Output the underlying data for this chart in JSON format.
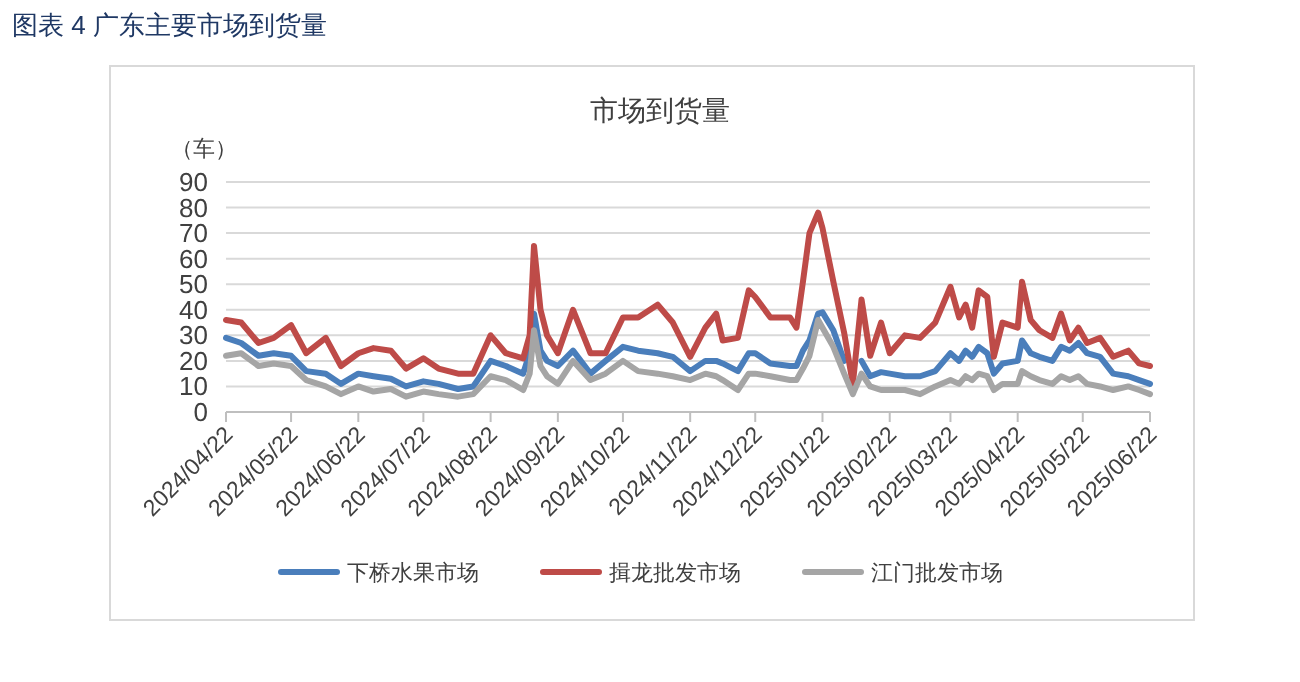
{
  "chart_data": {
    "type": "line",
    "title": "市场到货量",
    "ylabel": "（车）",
    "annotations": [
      "图表 4 广东主要市场到货量"
    ],
    "x": [
      "2024-04-22",
      "2024-04-29",
      "2024-05-07",
      "2024-05-14",
      "2024-05-22",
      "2024-05-29",
      "2024-06-07",
      "2024-06-14",
      "2024-06-22",
      "2024-06-29",
      "2024-07-07",
      "2024-07-14",
      "2024-07-22",
      "2024-07-29",
      "2024-08-07",
      "2024-08-14",
      "2024-08-22",
      "2024-08-29",
      "2024-09-06",
      "2024-09-09",
      "2024-09-11",
      "2024-09-14",
      "2024-09-17",
      "2024-09-22",
      "2024-09-29",
      "2024-10-07",
      "2024-10-14",
      "2024-10-22",
      "2024-10-29",
      "2024-11-07",
      "2024-11-14",
      "2024-11-22",
      "2024-11-29",
      "2024-12-04",
      "2024-12-07",
      "2024-12-14",
      "2024-12-19",
      "2024-12-22",
      "2024-12-29",
      "2025-01-07",
      "2025-01-10",
      "2025-01-13",
      "2025-01-16",
      "2025-01-20",
      "2025-01-22",
      "2025-01-27",
      "2025-02-01",
      "2025-02-05",
      "2025-02-09",
      "2025-02-13",
      "2025-02-18",
      "2025-02-22",
      "2025-03-01",
      "2025-03-08",
      "2025-03-15",
      "2025-03-22",
      "2025-03-26",
      "2025-03-29",
      "2025-04-01",
      "2025-04-04",
      "2025-04-08",
      "2025-04-11",
      "2025-04-15",
      "2025-04-22",
      "2025-04-24",
      "2025-04-28",
      "2025-05-02",
      "2025-05-08",
      "2025-05-12",
      "2025-05-16",
      "2025-05-20",
      "2025-05-24",
      "2025-05-30",
      "2025-06-05",
      "2025-06-12",
      "2025-06-17",
      "2025-06-22"
    ],
    "series": [
      {
        "name": "下桥水果市场",
        "color": "#4a7ebb",
        "values": [
          29,
          27,
          22,
          23,
          22,
          16,
          15,
          11,
          15,
          14,
          13,
          10,
          12,
          11,
          9,
          10,
          20,
          18,
          15,
          23,
          38.5,
          24,
          20,
          18,
          24,
          15,
          20,
          25.5,
          24,
          23,
          21.6,
          16,
          20,
          20,
          19,
          16,
          23,
          23,
          19,
          18,
          18,
          24,
          28,
          38.5,
          39,
          32,
          20,
          null,
          20,
          14,
          15.6,
          15,
          14,
          14,
          16,
          23,
          20,
          24,
          21.6,
          25.5,
          23,
          15,
          19,
          20,
          28,
          23,
          21.6,
          20,
          25.5,
          24,
          27,
          23,
          21.6,
          15,
          14,
          12.5,
          11
        ]
      },
      {
        "name": "揖龙批发市场",
        "color": "#be4b48",
        "values": [
          36,
          35,
          27,
          29,
          34,
          23,
          29,
          18,
          23,
          25,
          24,
          17,
          21,
          17,
          15,
          15,
          30,
          23,
          21,
          30,
          65,
          40,
          30,
          23,
          40,
          23,
          23,
          37,
          37,
          42,
          35,
          21.6,
          33,
          38.5,
          28,
          29,
          47.6,
          45,
          37,
          37,
          33,
          51,
          70,
          78,
          72,
          51,
          31,
          11,
          44,
          22,
          35,
          23,
          30,
          29,
          35,
          49,
          37,
          42,
          33,
          47.6,
          45,
          21.6,
          35,
          33,
          51,
          36,
          32,
          29,
          38.5,
          28,
          33,
          27,
          29,
          21.6,
          24,
          19,
          18
        ]
      },
      {
        "name": "江门批发市场",
        "color": "#a5a5a5",
        "values": [
          22,
          23,
          18,
          19,
          18,
          12.5,
          10,
          7,
          10,
          8,
          9,
          6,
          8,
          7,
          6,
          7,
          14,
          12.5,
          8.6,
          15,
          32,
          18,
          14,
          11,
          20,
          12.5,
          15,
          20,
          16,
          15,
          14,
          12.5,
          15,
          14,
          12.5,
          8.6,
          15,
          15,
          14,
          12.5,
          12.5,
          17,
          22,
          36,
          33,
          25.5,
          15,
          7,
          15,
          10,
          8.6,
          8.6,
          8.6,
          7,
          10,
          12.5,
          11,
          14,
          12.5,
          15,
          14,
          8.6,
          11,
          11,
          16,
          14,
          12.5,
          11,
          14,
          12.5,
          14,
          11,
          10,
          8.6,
          10,
          8.6,
          7
        ]
      }
    ],
    "xlim": [
      "2024-04-22",
      "2025-06-22"
    ],
    "xticks": [
      {
        "value": "2024-04-22",
        "label": "2024/04/22"
      },
      {
        "value": "2024-05-22",
        "label": "2024/05/22"
      },
      {
        "value": "2024-06-22",
        "label": "2024/06/22"
      },
      {
        "value": "2024-07-22",
        "label": "2024/07/22"
      },
      {
        "value": "2024-08-22",
        "label": "2024/08/22"
      },
      {
        "value": "2024-09-22",
        "label": "2024/09/22"
      },
      {
        "value": "2024-10-22",
        "label": "2024/10/22"
      },
      {
        "value": "2024-11-22",
        "label": "2024/11/22"
      },
      {
        "value": "2024-12-22",
        "label": "2024/12/22"
      },
      {
        "value": "2025-01-22",
        "label": "2025/01/22"
      },
      {
        "value": "2025-02-22",
        "label": "2025/02/22"
      },
      {
        "value": "2025-03-22",
        "label": "2025/03/22"
      },
      {
        "value": "2025-04-22",
        "label": "2025/04/22"
      },
      {
        "value": "2025-05-22",
        "label": "2025/05/22"
      },
      {
        "value": "2025-06-22",
        "label": "2025/06/22"
      }
    ],
    "ylim": [
      0,
      90
    ],
    "yticks": [
      0,
      10,
      20,
      30,
      40,
      50,
      60,
      70,
      80,
      90
    ],
    "grid": "y",
    "legend": "bottom",
    "marker": "none",
    "line_style": "solid"
  }
}
